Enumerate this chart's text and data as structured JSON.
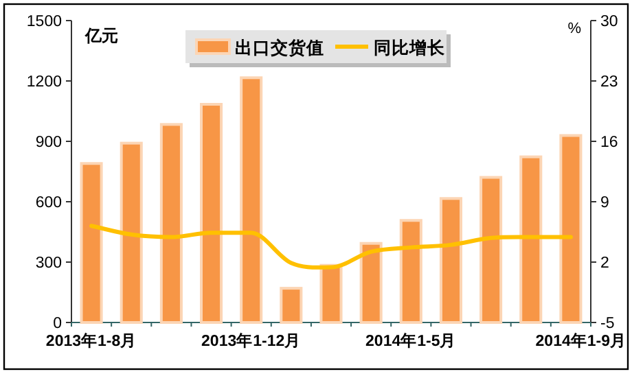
{
  "chart_data": {
    "type": "bar",
    "ylabel": "亿元",
    "y2label": "%",
    "categories": [
      "2013年1-8月",
      null,
      null,
      null,
      "2013年1-12月",
      null,
      null,
      null,
      "2014年1-5月",
      null,
      null,
      null,
      "2014年1-9月"
    ],
    "series": [
      {
        "name": "出口交货值",
        "color": "#f79646",
        "values": [
          790,
          891,
          984,
          1084,
          1216,
          170,
          284,
          393,
          507,
          616,
          721,
          823,
          929
        ]
      },
      {
        "name": "同比增长",
        "type": "line",
        "axis": "y2",
        "color": "#ffc000",
        "values": [
          6.2,
          5.2,
          4.9,
          5.4,
          5.4,
          1.9,
          1.4,
          3.2,
          3.7,
          4.0,
          4.8,
          4.9,
          4.9
        ]
      }
    ],
    "ylim": [
      0,
      1500
    ],
    "yticks": [
      0,
      300,
      600,
      900,
      1200,
      1500
    ],
    "y2lim": [
      -5,
      30
    ],
    "y2ticks": [
      -5,
      2,
      9,
      16,
      23,
      30
    ],
    "legend": "top"
  }
}
